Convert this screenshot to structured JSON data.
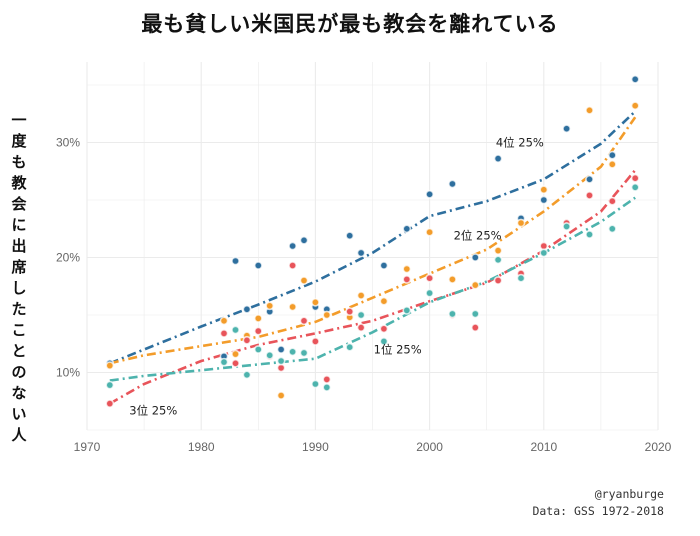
{
  "title": "最も貧しい米国民が最も教会を離れている",
  "credit": {
    "handle": "@ryanburge",
    "source": "Data: GSS 1972-2018"
  },
  "colors": {
    "q4": "#2e6f9e",
    "q2": "#f39c2a",
    "q3": "#e8545a",
    "q1": "#4db3ad",
    "grid": "#ebebeb"
  },
  "chart_data": {
    "type": "scatter",
    "title": "最も貧しい米国民が最も教会を離れている",
    "xlabel": "",
    "ylabel": "一度も教会に出席したことのない人",
    "xlim": [
      1970,
      2020
    ],
    "ylim": [
      5,
      37
    ],
    "xticks": [
      1970,
      1980,
      1990,
      2000,
      2010,
      2020
    ],
    "yticks": [
      10,
      20,
      30
    ],
    "ytick_labels": [
      "10%",
      "20%",
      "30%"
    ],
    "grid": true,
    "legend": "none",
    "series": [
      {
        "name": "4位 25%",
        "color": "#2e6f9e",
        "points": [
          [
            1972,
            10.8
          ],
          [
            1982,
            11.4
          ],
          [
            1983,
            19.7
          ],
          [
            1984,
            15.5
          ],
          [
            1985,
            19.3
          ],
          [
            1986,
            15.3
          ],
          [
            1987,
            12.0
          ],
          [
            1988,
            21.0
          ],
          [
            1989,
            21.5
          ],
          [
            1990,
            15.7
          ],
          [
            1991,
            15.5
          ],
          [
            1993,
            21.9
          ],
          [
            1994,
            20.4
          ],
          [
            1996,
            19.3
          ],
          [
            1998,
            22.5
          ],
          [
            2000,
            25.5
          ],
          [
            2002,
            26.4
          ],
          [
            2004,
            20.0
          ],
          [
            2006,
            28.6
          ],
          [
            2008,
            23.4
          ],
          [
            2010,
            25.0
          ],
          [
            2012,
            31.2
          ],
          [
            2014,
            26.8
          ],
          [
            2016,
            28.9
          ],
          [
            2018,
            35.5
          ]
        ],
        "trend": [
          [
            1972,
            10.8
          ],
          [
            1975,
            12.0
          ],
          [
            1980,
            14.0
          ],
          [
            1985,
            15.9
          ],
          [
            1990,
            17.9
          ],
          [
            1995,
            20.4
          ],
          [
            2000,
            23.6
          ],
          [
            2005,
            24.9
          ],
          [
            2010,
            26.8
          ],
          [
            2015,
            29.9
          ],
          [
            2018,
            32.7
          ]
        ]
      },
      {
        "name": "2位 25%",
        "color": "#f39c2a",
        "points": [
          [
            1972,
            10.6
          ],
          [
            1982,
            14.5
          ],
          [
            1983,
            11.6
          ],
          [
            1984,
            13.2
          ],
          [
            1985,
            14.7
          ],
          [
            1986,
            15.8
          ],
          [
            1987,
            8.0
          ],
          [
            1988,
            15.7
          ],
          [
            1989,
            18.0
          ],
          [
            1990,
            16.1
          ],
          [
            1991,
            15.0
          ],
          [
            1993,
            14.8
          ],
          [
            1994,
            16.7
          ],
          [
            1996,
            16.2
          ],
          [
            1998,
            19.0
          ],
          [
            2000,
            22.2
          ],
          [
            2002,
            18.1
          ],
          [
            2004,
            17.6
          ],
          [
            2006,
            20.6
          ],
          [
            2008,
            23.0
          ],
          [
            2010,
            25.9
          ],
          [
            2012,
            22.8
          ],
          [
            2014,
            32.8
          ],
          [
            2016,
            28.1
          ],
          [
            2018,
            33.2
          ]
        ],
        "trend": [
          [
            1972,
            10.8
          ],
          [
            1975,
            11.5
          ],
          [
            1980,
            12.3
          ],
          [
            1985,
            13.1
          ],
          [
            1990,
            14.4
          ],
          [
            1995,
            16.5
          ],
          [
            2000,
            18.6
          ],
          [
            2005,
            20.7
          ],
          [
            2010,
            24.0
          ],
          [
            2015,
            27.9
          ],
          [
            2018,
            32.2
          ]
        ]
      },
      {
        "name": "3位 25%",
        "color": "#e8545a",
        "points": [
          [
            1972,
            7.3
          ],
          [
            1982,
            13.4
          ],
          [
            1983,
            10.8
          ],
          [
            1984,
            12.8
          ],
          [
            1985,
            13.6
          ],
          [
            1986,
            11.4
          ],
          [
            1987,
            10.4
          ],
          [
            1988,
            19.3
          ],
          [
            1989,
            14.5
          ],
          [
            1990,
            12.7
          ],
          [
            1991,
            9.4
          ],
          [
            1993,
            15.3
          ],
          [
            1994,
            13.9
          ],
          [
            1996,
            13.8
          ],
          [
            1998,
            18.1
          ],
          [
            2000,
            18.2
          ],
          [
            2002,
            15.0
          ],
          [
            2004,
            13.9
          ],
          [
            2006,
            18.0
          ],
          [
            2008,
            18.6
          ],
          [
            2010,
            21.0
          ],
          [
            2012,
            23.0
          ],
          [
            2014,
            25.4
          ],
          [
            2016,
            24.9
          ],
          [
            2018,
            26.9
          ]
        ],
        "trend": [
          [
            1972,
            7.3
          ],
          [
            1975,
            9.0
          ],
          [
            1980,
            11.0
          ],
          [
            1985,
            12.4
          ],
          [
            1990,
            13.4
          ],
          [
            1995,
            14.5
          ],
          [
            2000,
            16.2
          ],
          [
            2005,
            17.8
          ],
          [
            2010,
            20.6
          ],
          [
            2015,
            24.0
          ],
          [
            2018,
            27.6
          ]
        ]
      },
      {
        "name": "1位 25%",
        "color": "#4db3ad",
        "points": [
          [
            1972,
            8.9
          ],
          [
            1982,
            10.9
          ],
          [
            1983,
            13.7
          ],
          [
            1984,
            9.8
          ],
          [
            1985,
            12.0
          ],
          [
            1986,
            11.5
          ],
          [
            1987,
            11.0
          ],
          [
            1988,
            11.8
          ],
          [
            1989,
            11.7
          ],
          [
            1990,
            9.0
          ],
          [
            1991,
            8.7
          ],
          [
            1993,
            12.2
          ],
          [
            1994,
            15.0
          ],
          [
            1996,
            12.7
          ],
          [
            1998,
            15.4
          ],
          [
            2000,
            16.9
          ],
          [
            2002,
            15.1
          ],
          [
            2004,
            15.1
          ],
          [
            2006,
            19.8
          ],
          [
            2008,
            18.2
          ],
          [
            2010,
            20.4
          ],
          [
            2012,
            22.7
          ],
          [
            2014,
            22.0
          ],
          [
            2016,
            22.5
          ],
          [
            2018,
            26.1
          ]
        ],
        "trend": [
          [
            1972,
            9.3
          ],
          [
            1975,
            9.7
          ],
          [
            1980,
            10.2
          ],
          [
            1985,
            10.7
          ],
          [
            1990,
            11.2
          ],
          [
            1995,
            13.5
          ],
          [
            2000,
            16.1
          ],
          [
            2005,
            17.9
          ],
          [
            2010,
            20.4
          ],
          [
            2015,
            23.1
          ],
          [
            2018,
            25.2
          ]
        ]
      }
    ],
    "annotations": [
      {
        "text": "4位 25%",
        "x": 2005.8,
        "y": 30.0,
        "series": 0
      },
      {
        "text": "2位 25%",
        "x": 2002.1,
        "y": 21.9,
        "series": 1
      },
      {
        "text": "3位 25%",
        "x": 1973.7,
        "y": 6.7,
        "series": 2
      },
      {
        "text": "1位 25%",
        "x": 1995.1,
        "y": 12.0,
        "series": 3
      }
    ]
  }
}
